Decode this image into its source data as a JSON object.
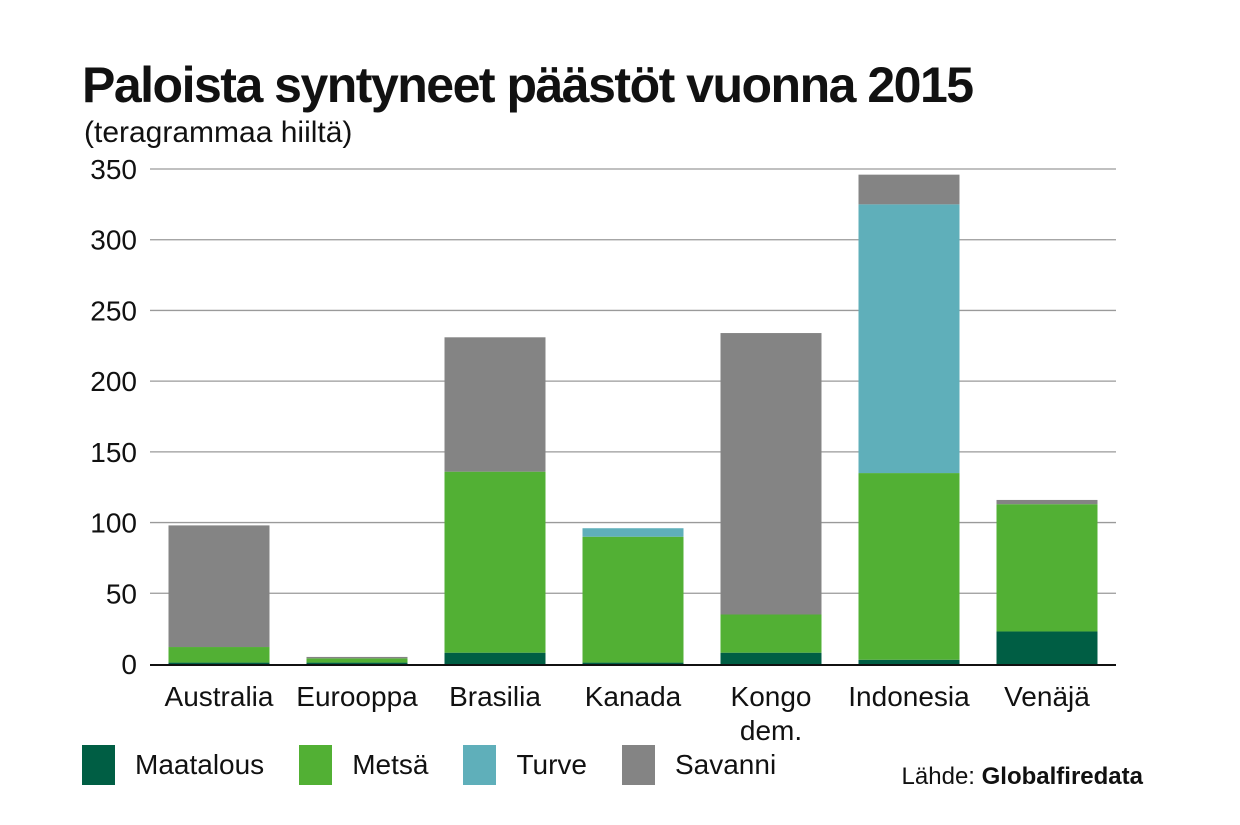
{
  "chart_data": {
    "type": "bar",
    "stacked": true,
    "title": "Paloista syntyneet päästöt vuonna 2015",
    "subtitle": "(teragrammaa hiiltä)",
    "ylim": [
      0,
      350
    ],
    "yticks": [
      "0",
      "50",
      "100",
      "150",
      "200",
      "250",
      "300",
      "350"
    ],
    "ytick_values": [
      0,
      50,
      100,
      150,
      200,
      250,
      300,
      350
    ],
    "grid": true,
    "categories": [
      [
        "Australia"
      ],
      [
        "Eurooppa"
      ],
      [
        "Brasilia"
      ],
      [
        "Kanada"
      ],
      [
        "Kongo",
        "dem."
      ],
      [
        "Indonesia"
      ],
      [
        "Venäjä"
      ]
    ],
    "series": [
      {
        "name": "Maatalous",
        "color": "#005e44",
        "values": [
          1,
          1,
          8,
          1,
          8,
          3,
          23
        ]
      },
      {
        "name": "Metsä",
        "color": "#52b034",
        "values": [
          11,
          3,
          128,
          89,
          27,
          132,
          90
        ]
      },
      {
        "name": "Turve",
        "color": "#5fafba",
        "values": [
          0,
          0,
          0,
          6,
          0,
          190,
          0
        ]
      },
      {
        "name": "Savanni",
        "color": "#848484",
        "values": [
          86,
          1,
          95,
          0,
          199,
          21,
          3
        ]
      }
    ],
    "legend_position": "bottom"
  },
  "source": {
    "prefix": "Lähde: ",
    "name": "Globalfiredata"
  }
}
